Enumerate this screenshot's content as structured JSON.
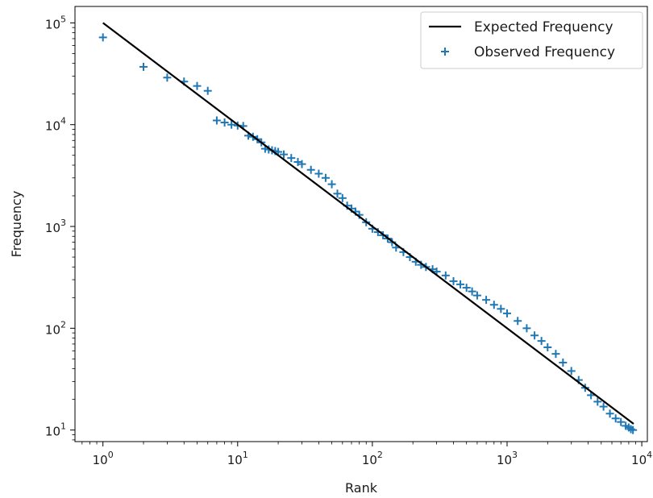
{
  "chart_data": {
    "type": "scatter",
    "xscale": "log",
    "yscale": "log",
    "xlim": [
      0.62,
      11000
    ],
    "ylim": [
      7.7,
      145000
    ],
    "xlabel": "Rank",
    "ylabel": "Frequency",
    "xticks": [
      1,
      10,
      100,
      1000,
      10000
    ],
    "yticks": [
      10,
      100,
      1000,
      10000,
      100000
    ],
    "xtick_labels": [
      {
        "base": "10",
        "exp": "0"
      },
      {
        "base": "10",
        "exp": "1"
      },
      {
        "base": "10",
        "exp": "2"
      },
      {
        "base": "10",
        "exp": "3"
      },
      {
        "base": "10",
        "exp": "4"
      }
    ],
    "ytick_labels": [
      {
        "base": "10",
        "exp": "1"
      },
      {
        "base": "10",
        "exp": "2"
      },
      {
        "base": "10",
        "exp": "3"
      },
      {
        "base": "10",
        "exp": "4"
      },
      {
        "base": "10",
        "exp": "5"
      }
    ],
    "grid": false,
    "legend_position": "top-right",
    "colors": {
      "expected": "#000000",
      "observed": "#1f77b4"
    },
    "series": [
      {
        "name": "Expected Frequency",
        "type": "line",
        "x": [
          1,
          8700
        ],
        "y": [
          100000,
          11.5
        ]
      },
      {
        "name": "Observed Frequency",
        "type": "scatter",
        "marker": "plus",
        "x": [
          1,
          2,
          3,
          4,
          5,
          6,
          7,
          8,
          9,
          10,
          11,
          12,
          13,
          14,
          15,
          16,
          17,
          18,
          19,
          20,
          22,
          25,
          28,
          30,
          35,
          40,
          45,
          50,
          55,
          60,
          65,
          70,
          75,
          80,
          90,
          100,
          110,
          120,
          130,
          140,
          150,
          170,
          190,
          210,
          230,
          250,
          280,
          300,
          350,
          400,
          450,
          500,
          550,
          600,
          700,
          800,
          900,
          1000,
          1200,
          1400,
          1600,
          1800,
          2000,
          2300,
          2600,
          3000,
          3400,
          3800,
          4200,
          4700,
          5200,
          5800,
          6400,
          7000,
          7600,
          8000,
          8300,
          8600
        ],
        "y": [
          72000,
          37000,
          29000,
          26500,
          24000,
          21500,
          11000,
          10500,
          10000,
          9800,
          9700,
          7800,
          7600,
          7200,
          6700,
          5800,
          5700,
          5600,
          5500,
          5400,
          5100,
          4700,
          4300,
          4100,
          3600,
          3300,
          3000,
          2600,
          2100,
          1900,
          1600,
          1500,
          1400,
          1300,
          1100,
          950,
          880,
          820,
          760,
          700,
          620,
          560,
          500,
          450,
          420,
          400,
          380,
          360,
          330,
          290,
          270,
          250,
          230,
          210,
          190,
          170,
          155,
          140,
          118,
          100,
          85,
          75,
          65,
          56,
          46,
          38,
          31,
          26,
          22,
          19,
          17,
          14.5,
          13,
          12,
          11,
          10.6,
          10.2,
          10
        ]
      }
    ]
  }
}
